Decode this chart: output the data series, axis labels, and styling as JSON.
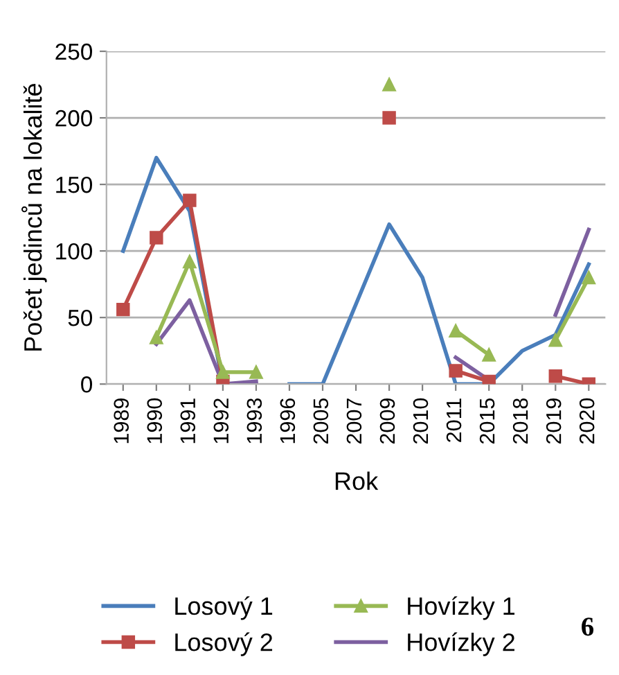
{
  "chart_data": {
    "type": "line",
    "xlabel": "Rok",
    "ylabel": "Počet jedinců na lokalitě",
    "categories": [
      "1989",
      "1990",
      "1991",
      "1992",
      "1993",
      "1996",
      "2005",
      "2007",
      "2009",
      "2010",
      "2011",
      "2015",
      "2018",
      "2019",
      "2020"
    ],
    "series": [
      {
        "name": "Losový 1",
        "color": "#4a7ebb",
        "marker": "none",
        "values": [
          100,
          170,
          130,
          0,
          null,
          0,
          0,
          60,
          120,
          80,
          0,
          0,
          25,
          37,
          90
        ]
      },
      {
        "name": "Losový 2",
        "color": "#be4b48",
        "marker": "square",
        "values": [
          56,
          110,
          138,
          2,
          null,
          null,
          null,
          null,
          200,
          null,
          10,
          2,
          null,
          6,
          0
        ]
      },
      {
        "name": "Hovízky 1",
        "color": "#98b954",
        "marker": "triangle",
        "values": [
          null,
          35,
          92,
          9,
          9,
          null,
          null,
          null,
          225,
          null,
          40,
          22,
          null,
          33,
          80
        ]
      },
      {
        "name": "Hovízky 2",
        "color": "#7d60a0",
        "marker": "none",
        "values": [
          null,
          30,
          63,
          0,
          2,
          null,
          null,
          null,
          null,
          null,
          20,
          3,
          null,
          52,
          116
        ]
      }
    ],
    "ylim": [
      0,
      250
    ],
    "yticks": [
      0,
      50,
      100,
      150,
      200,
      250
    ],
    "grid": "y",
    "legend": "bottom",
    "line_style": "solid",
    "annotations": [
      "6"
    ]
  }
}
